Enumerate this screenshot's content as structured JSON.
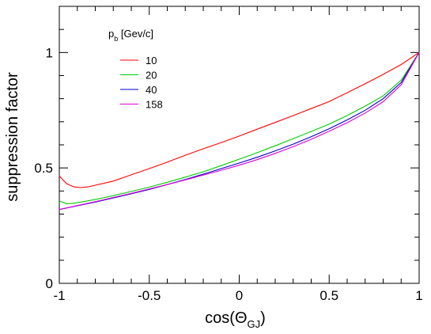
{
  "chart_data": {
    "type": "line",
    "xlabel": {
      "main": "cos(Θ",
      "sub": "GJ",
      "close": ")"
    },
    "ylabel": "suppression factor",
    "xlim": [
      -1,
      1
    ],
    "ylim": [
      0,
      1.2
    ],
    "x_ticks": [
      "-1",
      "-0.5",
      "0",
      "0.5",
      "1"
    ],
    "y_ticks": [
      "0",
      "0.5",
      "1"
    ],
    "legend": {
      "title_main": "p",
      "title_sub": "b",
      "title_rest": " [Gev/c]",
      "placement": "top-left"
    },
    "series": [
      {
        "name": "10",
        "color": "#ff0000",
        "x": [
          -1,
          -0.96,
          -0.92,
          -0.88,
          -0.84,
          -0.8,
          -0.7,
          -0.6,
          -0.5,
          -0.4,
          -0.3,
          -0.2,
          -0.1,
          0,
          0.1,
          0.2,
          0.3,
          0.4,
          0.5,
          0.6,
          0.7,
          0.8,
          0.9,
          1
        ],
        "y": [
          0.465,
          0.432,
          0.418,
          0.415,
          0.418,
          0.425,
          0.443,
          0.47,
          0.497,
          0.525,
          0.555,
          0.583,
          0.61,
          0.638,
          0.668,
          0.697,
          0.727,
          0.757,
          0.788,
          0.826,
          0.865,
          0.905,
          0.948,
          1.0
        ]
      },
      {
        "name": "20",
        "color": "#00cc00",
        "x": [
          -1,
          -0.96,
          -0.92,
          -0.88,
          -0.8,
          -0.7,
          -0.6,
          -0.5,
          -0.4,
          -0.3,
          -0.2,
          -0.1,
          0,
          0.1,
          0.2,
          0.3,
          0.4,
          0.5,
          0.6,
          0.7,
          0.8,
          0.9,
          1
        ],
        "y": [
          0.357,
          0.345,
          0.347,
          0.352,
          0.363,
          0.38,
          0.398,
          0.417,
          0.438,
          0.46,
          0.483,
          0.51,
          0.538,
          0.566,
          0.596,
          0.627,
          0.658,
          0.69,
          0.727,
          0.768,
          0.812,
          0.88,
          1.0
        ]
      },
      {
        "name": "40",
        "color": "#0000cc",
        "x": [
          -1,
          -0.9,
          -0.8,
          -0.7,
          -0.6,
          -0.5,
          -0.4,
          -0.3,
          -0.2,
          -0.1,
          0,
          0.1,
          0.2,
          0.3,
          0.4,
          0.5,
          0.6,
          0.7,
          0.8,
          0.9,
          1
        ],
        "y": [
          0.32,
          0.336,
          0.352,
          0.37,
          0.388,
          0.407,
          0.428,
          0.45,
          0.473,
          0.497,
          0.521,
          0.546,
          0.574,
          0.603,
          0.635,
          0.67,
          0.708,
          0.75,
          0.8,
          0.87,
          1.0
        ]
      },
      {
        "name": "158",
        "color": "#dd00dd",
        "x": [
          -1,
          -0.9,
          -0.8,
          -0.7,
          -0.6,
          -0.5,
          -0.4,
          -0.3,
          -0.2,
          -0.1,
          0,
          0.1,
          0.2,
          0.3,
          0.4,
          0.5,
          0.6,
          0.7,
          0.8,
          0.9,
          1
        ],
        "y": [
          0.32,
          0.337,
          0.354,
          0.372,
          0.39,
          0.409,
          0.428,
          0.448,
          0.469,
          0.49,
          0.512,
          0.536,
          0.563,
          0.592,
          0.624,
          0.659,
          0.696,
          0.738,
          0.787,
          0.86,
          1.0
        ]
      }
    ]
  }
}
